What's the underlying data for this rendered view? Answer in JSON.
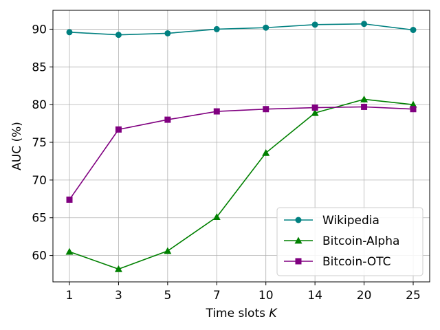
{
  "chart_data": {
    "type": "line",
    "title": "",
    "xlabel": "Time slots",
    "xlabel_var": "K",
    "ylabel": "AUC (%)",
    "categories": [
      "1",
      "3",
      "5",
      "7",
      "10",
      "14",
      "20",
      "25"
    ],
    "ylim": [
      56.5,
      92.5
    ],
    "yticks": [
      "60",
      "65",
      "70",
      "75",
      "80",
      "85",
      "90"
    ],
    "grid": true,
    "legend_position": "lower-right",
    "series": [
      {
        "name": "Wikipedia",
        "color": "#008080",
        "marker": "circle",
        "values": [
          89.6,
          89.25,
          89.45,
          90.0,
          90.2,
          90.6,
          90.7,
          89.9
        ]
      },
      {
        "name": "Bitcoin-Alpha",
        "color": "#008000",
        "marker": "triangle",
        "values": [
          60.5,
          58.2,
          60.6,
          65.1,
          73.6,
          78.9,
          80.7,
          80.0
        ]
      },
      {
        "name": "Bitcoin-OTC",
        "color": "#800080",
        "marker": "square",
        "values": [
          67.4,
          76.7,
          78.0,
          79.1,
          79.4,
          79.6,
          79.7,
          79.4
        ]
      }
    ]
  }
}
